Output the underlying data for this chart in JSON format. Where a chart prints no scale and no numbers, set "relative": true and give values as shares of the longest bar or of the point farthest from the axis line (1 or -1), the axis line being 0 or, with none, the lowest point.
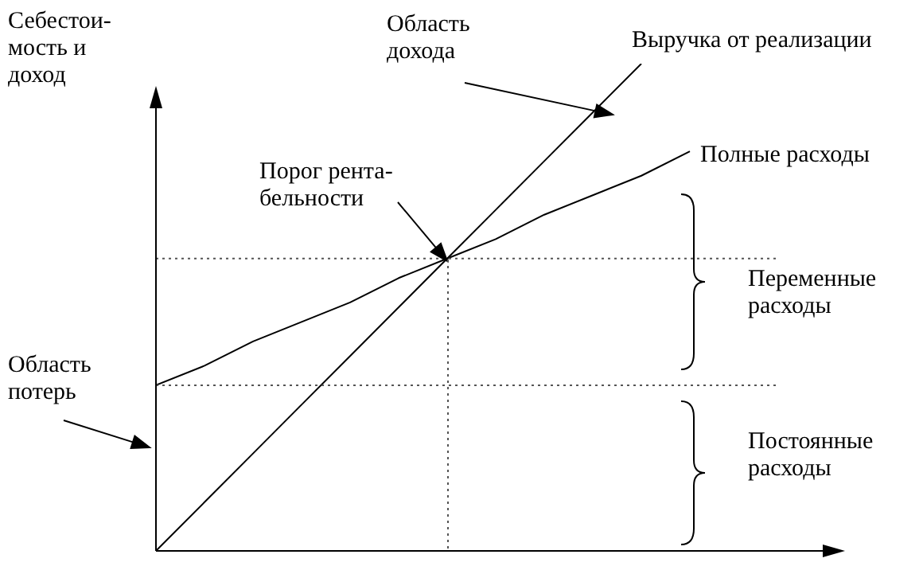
{
  "chart_data": {
    "type": "line",
    "relative": true,
    "ylabel": "Себестои-\nмость и\nдоход",
    "categories": [
      null,
      null,
      null,
      null,
      null,
      null,
      null,
      null,
      null,
      null,
      null,
      null,
      null,
      null,
      null
    ],
    "series": [
      {
        "name": "Выручка от реализации",
        "color": "#000000",
        "values": [
          0,
          0.1,
          0.2,
          0.3,
          0.4,
          0.5,
          0.6,
          0.7,
          0.8,
          0.9,
          1,
          null,
          null,
          null,
          null
        ]
      },
      {
        "name": "Полные расходы",
        "color": "#000000",
        "values": [
          0.34,
          0.38,
          0.43,
          0.47,
          0.51,
          0.56,
          0.6,
          0.64,
          0.69,
          0.73,
          0.77,
          0.82,
          null,
          null,
          null
        ]
      }
    ],
    "ref_lines": [
      {
        "axis": "y",
        "value": 0.34,
        "line_style": "dotted",
        "color": "#555555"
      },
      {
        "axis": "y",
        "value": 0.6,
        "line_style": "dotted",
        "color": "#555555"
      }
    ],
    "annotations": [
      "Область\nдохода",
      {
        "text": "Порог рента-\nбельности",
        "y": 0.6
      },
      "Переменные\nрасходы",
      "Область\nпотерь",
      "Постоянные\nрасходы"
    ]
  }
}
